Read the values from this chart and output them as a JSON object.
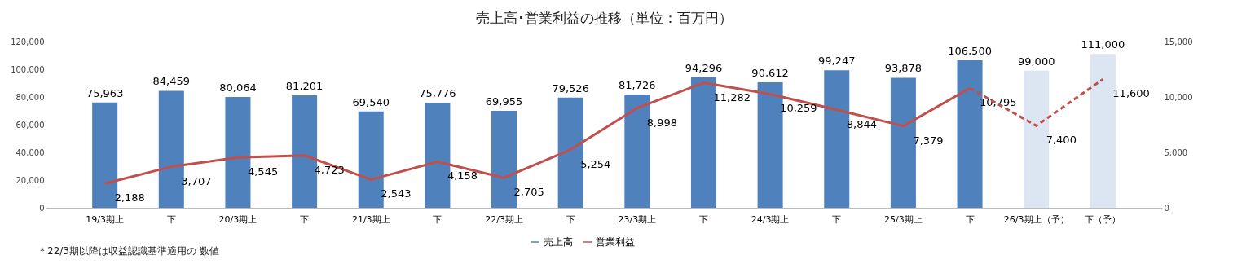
{
  "chart_data": {
    "type": "bar",
    "title": "売上高･営業利益の推移（単位：百万円）",
    "categories": [
      "19/3期上",
      "下",
      "20/3期上",
      "下",
      "21/3期上",
      "下",
      "22/3期上",
      "下",
      "23/3期上",
      "下",
      "24/3期上",
      "下",
      "25/3期上",
      "下",
      "26/3期上（予）",
      "下（予）"
    ],
    "series": [
      {
        "name": "売上高",
        "color": "#4f81bd",
        "colors": [
          "#4f81bd",
          "#4f81bd",
          "#4f81bd",
          "#4f81bd",
          "#4f81bd",
          "#4f81bd",
          "#4f81bd",
          "#4f81bd",
          "#4f81bd",
          "#4f81bd",
          "#4f81bd",
          "#4f81bd",
          "#4f81bd",
          "#4f81bd",
          "#dce6f2",
          "#dce6f2"
        ],
        "values": [
          75963,
          84459,
          80064,
          81201,
          69540,
          75776,
          69955,
          79526,
          81726,
          94296,
          90612,
          99247,
          93878,
          106500,
          99000,
          111000
        ],
        "value_labels": [
          "75,963",
          "84,459",
          "80,064",
          "81,201",
          "69,540",
          "75,776",
          "69,955",
          "79,526",
          "81,726",
          "94,296",
          "90,612",
          "99,247",
          "93,878",
          "106,500",
          "99,000",
          "111,000"
        ]
      },
      {
        "name": "営業利益",
        "type": "line",
        "axis": "y2",
        "color": "#c0504d",
        "line_style": "solid",
        "values": [
          2188,
          3707,
          4545,
          4723,
          2543,
          4158,
          2705,
          5254,
          8998,
          11282,
          10259,
          8844,
          7379,
          10795,
          null,
          null
        ],
        "value_labels": [
          "2,188",
          "3,707",
          "4,545",
          "4,723",
          "2,543",
          "4,158",
          "2,705",
          "5,254",
          "8,998",
          "11,282",
          "10,259",
          "8,844",
          "7,379",
          "10,795",
          null,
          null
        ]
      },
      {
        "type": "line",
        "axis": "y2",
        "color": "#c0504d",
        "line_style": "dashed",
        "values": [
          null,
          null,
          null,
          null,
          null,
          null,
          null,
          null,
          null,
          null,
          null,
          null,
          null,
          10795,
          7400,
          11600
        ],
        "value_labels": [
          null,
          null,
          null,
          null,
          null,
          null,
          null,
          null,
          null,
          null,
          null,
          null,
          null,
          null,
          "7,400",
          "11,600"
        ]
      }
    ],
    "ylim": [
      0,
      120000
    ],
    "yticks": [
      0,
      {
        "value": 20000,
        "label": "20,000"
      },
      {
        "value": 40000,
        "label": "40,000"
      },
      {
        "value": 60000,
        "label": "60,000"
      },
      {
        "value": 80000,
        "label": "80,000"
      },
      {
        "value": 100000,
        "label": "100,000"
      },
      {
        "value": 120000,
        "label": "120,000"
      }
    ],
    "y2lim": [
      0,
      15000
    ],
    "y2ticks": [
      0,
      {
        "value": 5000,
        "label": "5,000"
      },
      {
        "value": 10000,
        "label": "10,000"
      },
      {
        "value": 15000,
        "label": "15,000"
      }
    ],
    "grid": false,
    "legend": "bottom",
    "annotations": [
      "＊22/3期以降は収益認識基準適用の 数値"
    ]
  }
}
